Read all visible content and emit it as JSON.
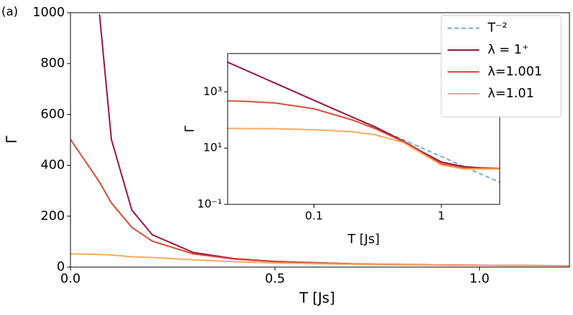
{
  "panel_label": "(a)",
  "chart_data": [
    {
      "type": "line",
      "xlabel": "T [Js]",
      "ylabel": "Γ",
      "x": [
        0,
        0.071,
        0.1,
        0.15,
        0.2,
        0.3,
        0.4,
        0.5,
        0.7,
        0.9,
        1.1,
        1.22
      ],
      "xlim": [
        0,
        1.22
      ],
      "ylim": [
        0,
        1000
      ],
      "xticks": [
        {
          "value": 0,
          "label": "0.0"
        },
        0.5,
        {
          "value": 1,
          "label": "1.0"
        }
      ],
      "yticks": [
        0,
        200,
        400,
        600,
        800,
        1000
      ],
      "series": [
        {
          "color": "#a0103a",
          "values": [
            null,
            994,
            502,
            224,
            127,
            57.6,
            33.3,
            22,
            12.2,
            8.2,
            6.1,
            5.4
          ]
        },
        {
          "color": "#dc4a30",
          "values": [
            502,
            334,
            252,
            156,
            102,
            52,
            31.4,
            21.2,
            12.2,
            8.1,
            6.1,
            5.3
          ]
        },
        {
          "color": "#f9a95e",
          "values": [
            52,
            49.6,
            47.5,
            40.5,
            37.7,
            28.3,
            21.2,
            16.3,
            10.3,
            7.5,
            5.8,
            5.1
          ]
        }
      ]
    },
    {
      "type": "line",
      "xlabel": "T [Js]",
      "ylabel": "Γ",
      "xscale": "log",
      "yscale": "log",
      "legend": "upper right",
      "x": [
        0.021,
        0.03,
        0.05,
        0.1,
        0.2,
        0.3,
        0.5,
        0.7,
        1,
        1.5,
        2,
        2.87
      ],
      "xlim": [
        0.021,
        2.87
      ],
      "ylim": [
        0.1,
        23000
      ],
      "xticks": [
        0.1,
        1
      ],
      "yticks": [
        {
          "value": 0.1,
          "label": "10⁻¹"
        },
        {
          "value": 10,
          "label": "10¹"
        },
        {
          "value": 1000,
          "label": "10³"
        }
      ],
      "series": [
        {
          "name": "T⁻²",
          "color": "#74aed4",
          "linestyle": "dashed",
          "values": [
            11338,
            5556,
            2000,
            500,
            125,
            55.6,
            20,
            10.2,
            5,
            2.22,
            1.25,
            0.61
          ]
        },
        {
          "name": "λ = 1⁺",
          "color": "#a0103a",
          "values": [
            11340,
            5558,
            2002,
            502,
            127,
            57.6,
            18,
            7.5,
            3.2,
            2.2,
            2.0,
            1.9
          ]
        },
        {
          "name": "λ=1.001",
          "color": "#dc4a30",
          "values": [
            479,
            459,
            400,
            250,
            100,
            50,
            17,
            7,
            2.8,
            2,
            1.9,
            1.9
          ]
        },
        {
          "name": "λ=1.01",
          "color": "#f9a95e",
          "values": [
            50,
            49.8,
            49,
            45,
            38,
            30,
            16,
            6.5,
            2.5,
            1.8,
            1.8,
            1.8
          ]
        }
      ]
    }
  ]
}
